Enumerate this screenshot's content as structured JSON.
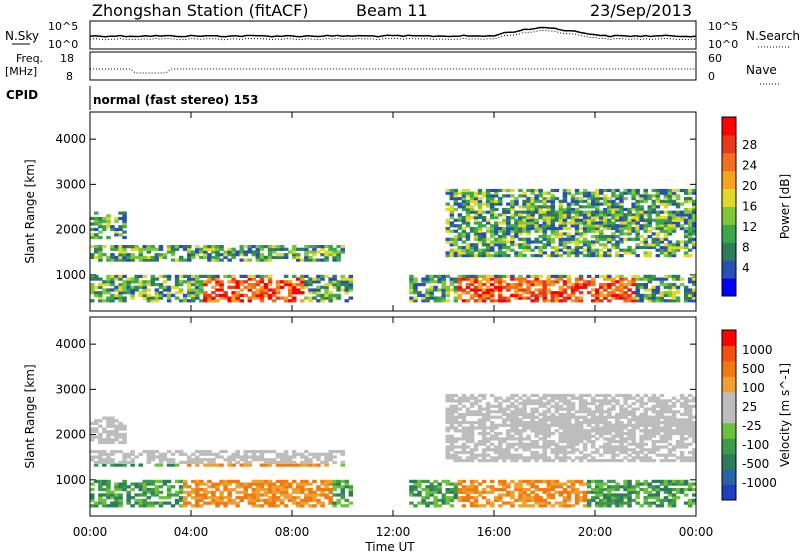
{
  "header": {
    "station": "Zhongshan Station (fitACF)",
    "beam": "Beam 11",
    "date": "23/Sep/2013"
  },
  "nsky": {
    "label": "N.Sky",
    "ticks": [
      "10^5",
      "10^0"
    ],
    "right_ticks": [
      "10^5",
      "10^0"
    ],
    "right_label": "N.Search"
  },
  "freq": {
    "label_top": "Freq.",
    "label_unit": "[MHz]",
    "ticks": [
      "18",
      "8"
    ],
    "right_ticks": [
      "60",
      "0"
    ],
    "right_label": "Nave"
  },
  "cpid": {
    "label": "CPID",
    "text": "normal (fast stereo) 153"
  },
  "chart_data": [
    {
      "type": "heatmap",
      "name": "power",
      "ylabel": "Slant Range [km]",
      "yticks": [
        "4000",
        "3000",
        "2000",
        "1000"
      ],
      "ylim": [
        200,
        4600
      ],
      "colorbar_label": "Power [dB]",
      "colorbar_ticks": [
        "28",
        "24",
        "20",
        "16",
        "12",
        "8",
        "4"
      ],
      "colors": [
        "#0000ff",
        "#2a4fb4",
        "#2e7d5a",
        "#3aa84a",
        "#7ec63a",
        "#e0d92a",
        "#f5a31e",
        "#f07020",
        "#e83a1a",
        "#ff0000"
      ]
    },
    {
      "type": "heatmap",
      "name": "velocity",
      "ylabel": "Slant Range [km]",
      "yticks": [
        "4000",
        "3000",
        "2000",
        "1000"
      ],
      "ylim": [
        200,
        4600
      ],
      "colorbar_label": "Velocity [m s^-1]",
      "colorbar_ticks": [
        "1000",
        "500",
        "100",
        "25",
        "-25",
        "-100",
        "-500",
        "-1000"
      ],
      "colors": [
        "#1f3fbf",
        "#2a63a8",
        "#2e7d5a",
        "#3f9a4a",
        "#6ac23a",
        "#bdbdbd",
        "#bdbdbd",
        "#f0a030",
        "#f07a10",
        "#f05010",
        "#ff0000"
      ]
    }
  ],
  "xaxis": {
    "label": "Time UT",
    "ticks": [
      "00:00",
      "04:00",
      "08:00",
      "12:00",
      "16:00",
      "20:00",
      "00:00"
    ]
  }
}
